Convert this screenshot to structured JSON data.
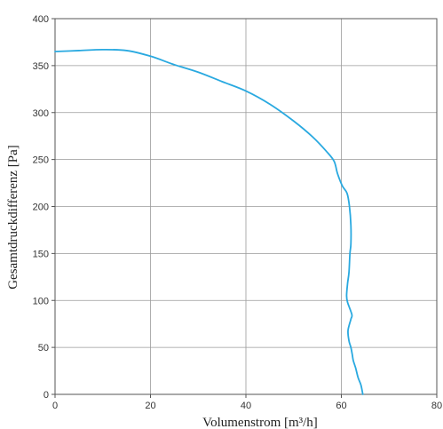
{
  "chart_data": {
    "type": "line",
    "title": "",
    "xlabel": "Volumenstrom [m³/h]",
    "ylabel": "Gesamtdruckdifferenz [Pa]",
    "xlim": [
      0,
      80
    ],
    "ylim": [
      0,
      400
    ],
    "xticks": [
      0,
      20,
      40,
      60,
      80
    ],
    "yticks": [
      0,
      50,
      100,
      150,
      200,
      250,
      300,
      350,
      400
    ],
    "grid": true,
    "series": [
      {
        "color": "#29a9e0",
        "x": [
          0,
          5,
          10,
          15,
          20,
          25,
          30,
          35,
          40,
          45,
          50,
          54,
          57,
          58.5,
          59.2,
          60.2,
          61.2,
          61.7,
          62.0,
          62.0,
          61.8,
          61.6,
          61.3,
          61.1,
          61.3,
          62.2,
          62.0,
          61.4,
          61.6,
          62.0,
          62.3,
          62.5,
          63.0,
          63.5,
          64.1,
          64.5
        ],
        "y": [
          365,
          366,
          367,
          366,
          360,
          351,
          343,
          333,
          323,
          309,
          291,
          274,
          258,
          248,
          235,
          222,
          214,
          200,
          180,
          160,
          150,
          130,
          118,
          105,
          98,
          85,
          80,
          68,
          57,
          50,
          42,
          36,
          28,
          18,
          10,
          0
        ]
      }
    ]
  }
}
